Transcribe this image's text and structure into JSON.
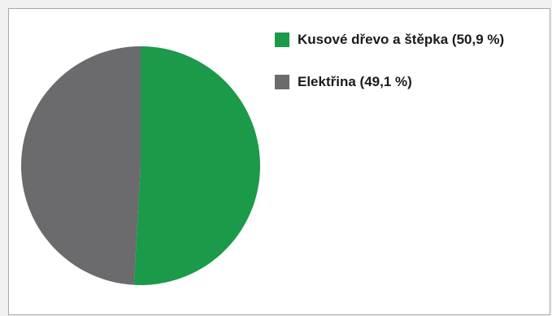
{
  "chart_data": {
    "type": "pie",
    "title": "",
    "categories": [
      "Kusové dřevo a štěpka",
      "Elektřina"
    ],
    "values": [
      50.9,
      49.1
    ],
    "unit": "%",
    "colors": [
      "#1b9a49",
      "#6b6b6d"
    ],
    "start_angle": "12 o'clock",
    "direction": "clockwise",
    "legend_placement": "top-right",
    "legend": [
      {
        "label": "Kusové dřevo a štěpka (50,9 %)",
        "color": "#1b9a49"
      },
      {
        "label": "Elektřina (49,1 %)",
        "color": "#6b6b6d"
      }
    ]
  },
  "frame": {
    "background": "#ffffff",
    "border_color": "#a8a8a8"
  }
}
